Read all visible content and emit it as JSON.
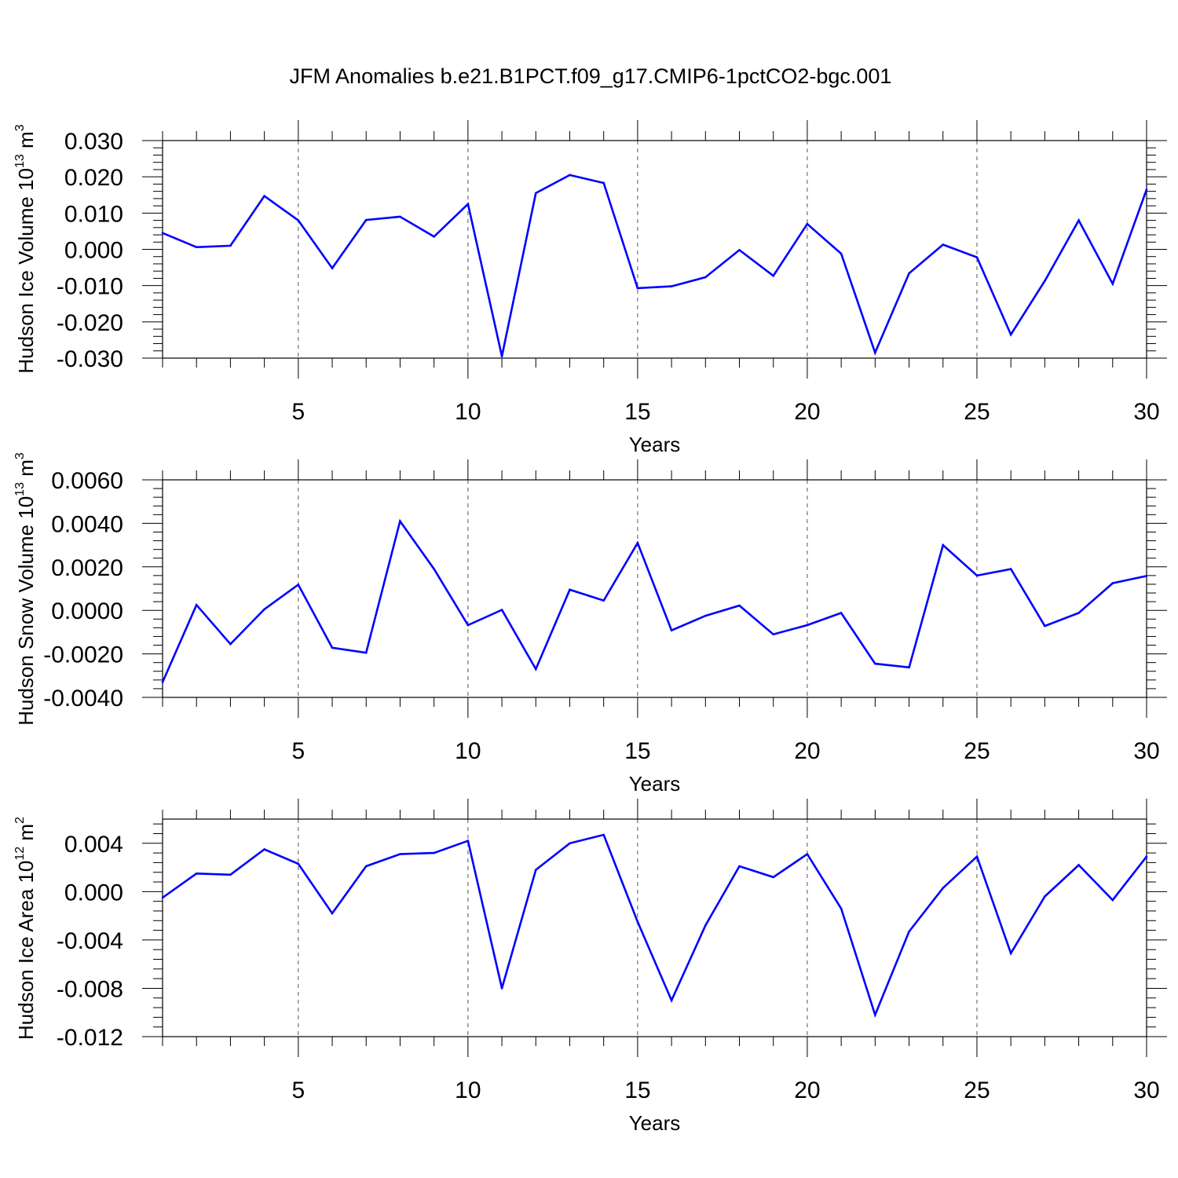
{
  "title": "JFM Anomalies b.e21.B1PCT.f09_g17.CMIP6-1pctCO2-bgc.001",
  "colors": {
    "line": "#0000ff",
    "axis": "#000000",
    "grid": "#555555"
  },
  "chart_data": [
    {
      "type": "line",
      "xlabel": "Years",
      "ylabel_prefix": "Hudson Ice Volume 10",
      "ylabel_exp": "13",
      "ylabel_unit": " m",
      "ylabel_unit_exp": "3",
      "xlim": [
        1,
        30
      ],
      "ylim": [
        -0.03,
        0.03
      ],
      "x_ticks": [
        5,
        10,
        15,
        20,
        25,
        30
      ],
      "y_ticks": [
        -0.03,
        -0.02,
        -0.01,
        0.0,
        0.01,
        0.02,
        0.03
      ],
      "y_tick_labels": [
        "-0.030",
        "-0.020",
        "-0.010",
        "0.000",
        "0.010",
        "0.020",
        "0.030"
      ],
      "grid": "vertical-dashed",
      "x": [
        1,
        2,
        3,
        4,
        5,
        6,
        7,
        8,
        9,
        10,
        11,
        12,
        13,
        14,
        15,
        16,
        17,
        18,
        19,
        20,
        21,
        22,
        23,
        24,
        25,
        26,
        27,
        28,
        29,
        30
      ],
      "values": [
        0.0045,
        0.0006,
        0.001,
        0.0147,
        0.008,
        -0.0052,
        0.0081,
        0.009,
        0.0035,
        0.0125,
        -0.0295,
        0.0155,
        0.0205,
        0.0183,
        -0.0107,
        -0.0102,
        -0.0077,
        -0.0002,
        -0.0073,
        0.007,
        -0.0012,
        -0.0285,
        -0.0066,
        0.0013,
        -0.0022,
        -0.0235,
        -0.0087,
        0.008,
        -0.0095,
        0.0165
      ]
    },
    {
      "type": "line",
      "xlabel": "Years",
      "ylabel_prefix": "Hudson Snow Volume 10",
      "ylabel_exp": "13",
      "ylabel_unit": " m",
      "ylabel_unit_exp": "3",
      "xlim": [
        1,
        30
      ],
      "ylim": [
        -0.004,
        0.006
      ],
      "x_ticks": [
        5,
        10,
        15,
        20,
        25,
        30
      ],
      "y_ticks": [
        -0.004,
        -0.002,
        0.0,
        0.002,
        0.004,
        0.006
      ],
      "y_tick_labels": [
        "-0.0040",
        "-0.0020",
        "0.0000",
        "0.0020",
        "0.0040",
        "0.0060"
      ],
      "grid": "vertical-dashed",
      "x": [
        1,
        2,
        3,
        4,
        5,
        6,
        7,
        8,
        9,
        10,
        11,
        12,
        13,
        14,
        15,
        16,
        17,
        18,
        19,
        20,
        21,
        22,
        23,
        24,
        25,
        26,
        27,
        28,
        29,
        30
      ],
      "values": [
        -0.0033,
        0.00025,
        -0.00155,
        5e-05,
        0.00118,
        -0.00172,
        -0.00195,
        0.0041,
        0.0019,
        -0.00068,
        2e-05,
        -0.0027,
        0.00095,
        0.00045,
        0.0031,
        -0.00092,
        -0.00025,
        0.00022,
        -0.0011,
        -0.00068,
        -0.00012,
        -0.00245,
        -0.00262,
        0.003,
        0.0016,
        0.0019,
        -0.00072,
        -0.00012,
        0.00125,
        0.00158
      ]
    },
    {
      "type": "line",
      "xlabel": "Years",
      "ylabel_prefix": "Hudson Ice Area 10",
      "ylabel_exp": "12",
      "ylabel_unit": " m",
      "ylabel_unit_exp": "2",
      "xlim": [
        1,
        30
      ],
      "ylim": [
        -0.012,
        0.006
      ],
      "x_ticks": [
        5,
        10,
        15,
        20,
        25,
        30
      ],
      "y_ticks": [
        -0.012,
        -0.008,
        -0.004,
        0.0,
        0.004
      ],
      "y_tick_labels": [
        "-0.012",
        "-0.008",
        "-0.004",
        "0.000",
        "0.004"
      ],
      "grid": "vertical-dashed",
      "x": [
        1,
        2,
        3,
        4,
        5,
        6,
        7,
        8,
        9,
        10,
        11,
        12,
        13,
        14,
        15,
        16,
        17,
        18,
        19,
        20,
        21,
        22,
        23,
        24,
        25,
        26,
        27,
        28,
        29,
        30
      ],
      "values": [
        -0.0005,
        0.0015,
        0.0014,
        0.0035,
        0.0023,
        -0.0018,
        0.0021,
        0.0031,
        0.0032,
        0.0042,
        -0.008,
        0.0018,
        0.004,
        0.0047,
        -0.0025,
        -0.009,
        -0.0028,
        0.0021,
        0.0012,
        0.0031,
        -0.0014,
        -0.0102,
        -0.0033,
        0.0003,
        0.0029,
        -0.0051,
        -0.0004,
        0.0022,
        -0.0007,
        0.0029
      ]
    }
  ]
}
